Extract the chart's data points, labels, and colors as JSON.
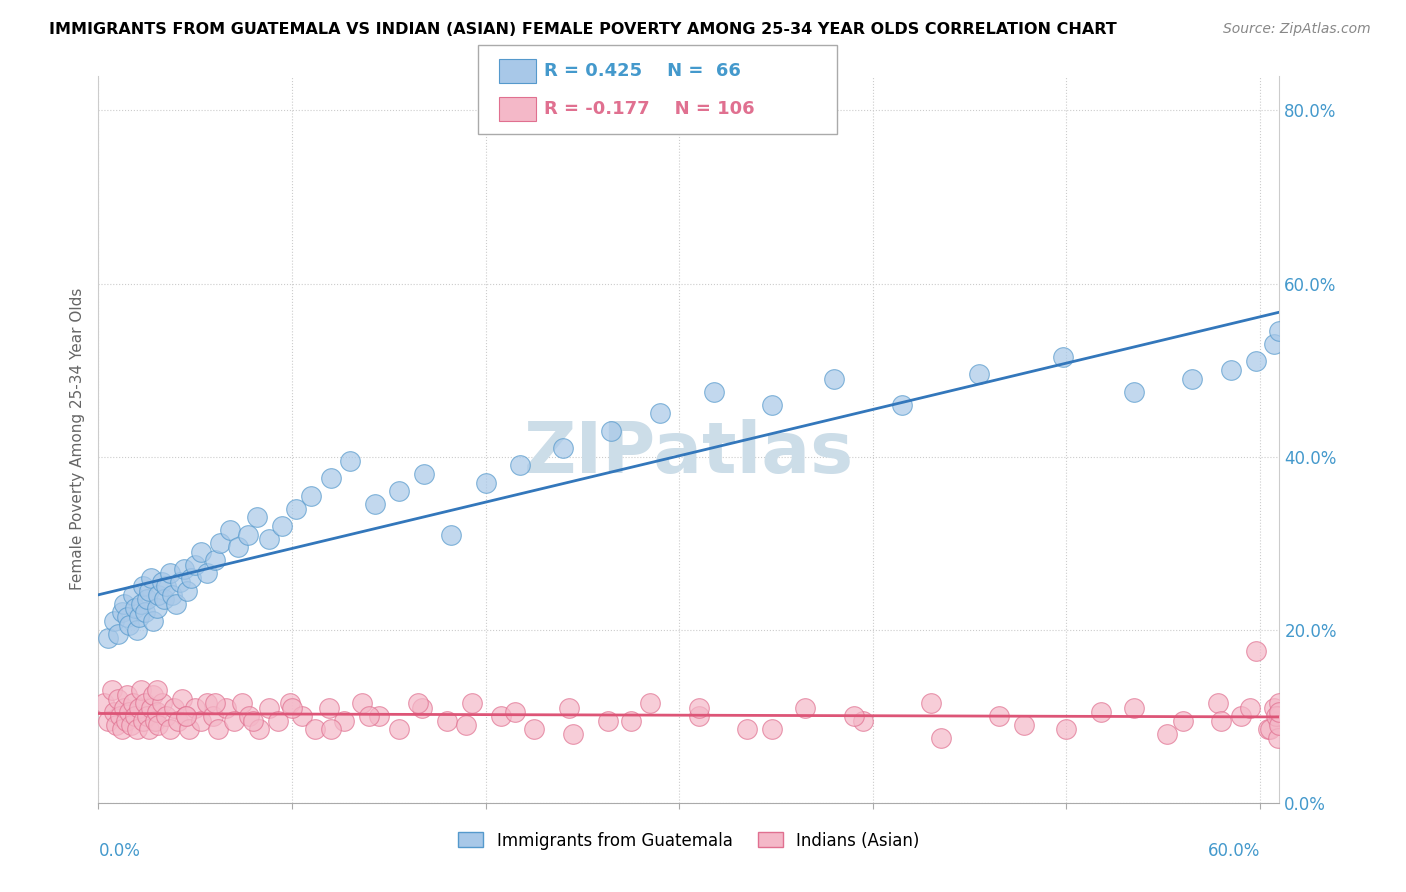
{
  "title": "IMMIGRANTS FROM GUATEMALA VS INDIAN (ASIAN) FEMALE POVERTY AMONG 25-34 YEAR OLDS CORRELATION CHART",
  "source": "Source: ZipAtlas.com",
  "ylabel": "Female Poverty Among 25-34 Year Olds",
  "ylim": [
    0.0,
    0.84
  ],
  "xlim": [
    0.0,
    0.61
  ],
  "yticks": [
    0.0,
    0.2,
    0.4,
    0.6,
    0.8
  ],
  "ytick_labels": [
    "0.0%",
    "20.0%",
    "40.0%",
    "60.0%",
    "80.0%"
  ],
  "legend_R1": "0.425",
  "legend_N1": "66",
  "legend_R2": "-0.177",
  "legend_N2": "106",
  "color_blue_fill": "#a8c8e8",
  "color_blue_edge": "#5599cc",
  "color_blue_line": "#3377bb",
  "color_pink_fill": "#f4b8c8",
  "color_pink_edge": "#e07090",
  "color_pink_line": "#dd5577",
  "watermark_color": "#ccdde8",
  "grid_color": "#cccccc",
  "ytick_color": "#4499cc",
  "blue_x": [
    0.005,
    0.008,
    0.01,
    0.012,
    0.013,
    0.015,
    0.016,
    0.018,
    0.019,
    0.02,
    0.021,
    0.022,
    0.023,
    0.024,
    0.025,
    0.026,
    0.027,
    0.028,
    0.03,
    0.031,
    0.033,
    0.034,
    0.035,
    0.037,
    0.038,
    0.04,
    0.042,
    0.044,
    0.046,
    0.048,
    0.05,
    0.053,
    0.056,
    0.06,
    0.063,
    0.068,
    0.072,
    0.077,
    0.082,
    0.088,
    0.095,
    0.102,
    0.11,
    0.12,
    0.13,
    0.143,
    0.155,
    0.168,
    0.182,
    0.2,
    0.218,
    0.24,
    0.265,
    0.29,
    0.318,
    0.348,
    0.38,
    0.415,
    0.455,
    0.498,
    0.535,
    0.565,
    0.585,
    0.598,
    0.607,
    0.61
  ],
  "blue_y": [
    0.19,
    0.21,
    0.195,
    0.22,
    0.23,
    0.215,
    0.205,
    0.24,
    0.225,
    0.2,
    0.215,
    0.23,
    0.25,
    0.22,
    0.235,
    0.245,
    0.26,
    0.21,
    0.225,
    0.24,
    0.255,
    0.235,
    0.25,
    0.265,
    0.24,
    0.23,
    0.255,
    0.27,
    0.245,
    0.26,
    0.275,
    0.29,
    0.265,
    0.28,
    0.3,
    0.315,
    0.295,
    0.31,
    0.33,
    0.305,
    0.32,
    0.34,
    0.355,
    0.375,
    0.395,
    0.345,
    0.36,
    0.38,
    0.31,
    0.37,
    0.39,
    0.41,
    0.43,
    0.45,
    0.475,
    0.46,
    0.49,
    0.46,
    0.495,
    0.515,
    0.475,
    0.49,
    0.5,
    0.51,
    0.53,
    0.545
  ],
  "pink_x": [
    0.003,
    0.005,
    0.007,
    0.008,
    0.009,
    0.01,
    0.011,
    0.012,
    0.013,
    0.014,
    0.015,
    0.016,
    0.017,
    0.018,
    0.019,
    0.02,
    0.021,
    0.022,
    0.023,
    0.024,
    0.025,
    0.026,
    0.027,
    0.028,
    0.029,
    0.03,
    0.031,
    0.033,
    0.035,
    0.037,
    0.039,
    0.041,
    0.043,
    0.045,
    0.047,
    0.05,
    0.053,
    0.056,
    0.059,
    0.062,
    0.066,
    0.07,
    0.074,
    0.078,
    0.083,
    0.088,
    0.093,
    0.099,
    0.105,
    0.112,
    0.119,
    0.127,
    0.136,
    0.145,
    0.155,
    0.167,
    0.18,
    0.193,
    0.208,
    0.225,
    0.243,
    0.263,
    0.285,
    0.31,
    0.335,
    0.365,
    0.395,
    0.43,
    0.465,
    0.5,
    0.535,
    0.56,
    0.578,
    0.59,
    0.598,
    0.604,
    0.607,
    0.609,
    0.61,
    0.61,
    0.03,
    0.045,
    0.06,
    0.08,
    0.1,
    0.12,
    0.14,
    0.165,
    0.19,
    0.215,
    0.245,
    0.275,
    0.31,
    0.348,
    0.39,
    0.435,
    0.478,
    0.518,
    0.552,
    0.58,
    0.595,
    0.605,
    0.608,
    0.609,
    0.61,
    0.61
  ],
  "pink_y": [
    0.115,
    0.095,
    0.13,
    0.105,
    0.09,
    0.12,
    0.1,
    0.085,
    0.11,
    0.095,
    0.125,
    0.105,
    0.09,
    0.115,
    0.1,
    0.085,
    0.11,
    0.13,
    0.095,
    0.115,
    0.1,
    0.085,
    0.11,
    0.125,
    0.095,
    0.105,
    0.09,
    0.115,
    0.1,
    0.085,
    0.11,
    0.095,
    0.12,
    0.1,
    0.085,
    0.11,
    0.095,
    0.115,
    0.1,
    0.085,
    0.11,
    0.095,
    0.115,
    0.1,
    0.085,
    0.11,
    0.095,
    0.115,
    0.1,
    0.085,
    0.11,
    0.095,
    0.115,
    0.1,
    0.085,
    0.11,
    0.095,
    0.115,
    0.1,
    0.085,
    0.11,
    0.095,
    0.115,
    0.1,
    0.085,
    0.11,
    0.095,
    0.115,
    0.1,
    0.085,
    0.11,
    0.095,
    0.115,
    0.1,
    0.175,
    0.085,
    0.11,
    0.095,
    0.115,
    0.1,
    0.13,
    0.1,
    0.115,
    0.095,
    0.11,
    0.085,
    0.1,
    0.115,
    0.09,
    0.105,
    0.08,
    0.095,
    0.11,
    0.085,
    0.1,
    0.075,
    0.09,
    0.105,
    0.08,
    0.095,
    0.11,
    0.085,
    0.1,
    0.075,
    0.09,
    0.105
  ]
}
